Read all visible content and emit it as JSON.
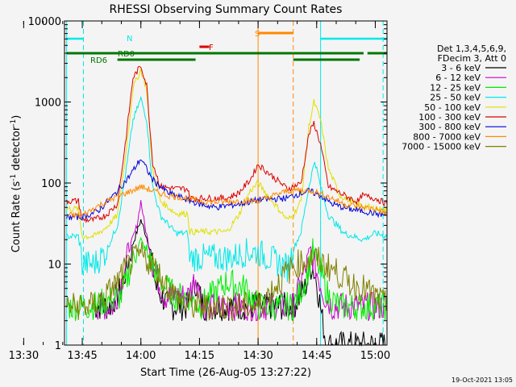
{
  "chart_data": {
    "type": "line",
    "title": "RHESSI Observing Summary Count Rates",
    "xlabel": "Start Time (26-Aug-05 13:27:22)",
    "ylabel": "Count Rate (s⁻¹ detector⁻¹)",
    "ylabel_main": "Count Rate (s",
    "ylabel_sup1": "-1",
    "ylabel_mid": " detector",
    "ylabel_sup2": "-1",
    "ylabel_end": ")",
    "yscale": "log",
    "ylim": [
      1,
      10000
    ],
    "xlim_minutes": [
      13.45,
      96
    ],
    "x_ticks": [
      {
        "m": 3,
        "label": "13:30"
      },
      {
        "m": 18,
        "label": "13:45"
      },
      {
        "m": 33,
        "label": "14:00"
      },
      {
        "m": 48,
        "label": "14:15"
      },
      {
        "m": 63,
        "label": "14:30"
      },
      {
        "m": 78,
        "label": "14:45"
      },
      {
        "m": 93,
        "label": "15:00"
      }
    ],
    "y_ticks": [
      {
        "v": 1,
        "label": "1"
      },
      {
        "v": 10,
        "label": "10"
      },
      {
        "v": 100,
        "label": "100"
      },
      {
        "v": 1000,
        "label": "1000"
      },
      {
        "v": 10000,
        "label": "10000"
      }
    ],
    "legend_header": [
      "Det 1,3,4,5,6,9,",
      "FDecim 3, Att 0"
    ],
    "series": [
      {
        "name": "3 - 6 keV",
        "color": "#000000",
        "points": [
          [
            21,
            3
          ],
          [
            25,
            3
          ],
          [
            28,
            5
          ],
          [
            31,
            18
          ],
          [
            33,
            35
          ],
          [
            35,
            18
          ],
          [
            37,
            5
          ],
          [
            40,
            3
          ],
          [
            45,
            3
          ],
          [
            47,
            6
          ],
          [
            49,
            3
          ],
          [
            60,
            3
          ],
          [
            63,
            3
          ],
          [
            72,
            3
          ],
          [
            75,
            5
          ],
          [
            76.8,
            10
          ],
          [
            78,
            6
          ],
          [
            79.5,
            2
          ],
          [
            80.5,
            1
          ],
          [
            96,
            1
          ]
        ]
      },
      {
        "name": "6 - 12 keV",
        "color": "#cc00cc",
        "points": [
          [
            21,
            3
          ],
          [
            26,
            3
          ],
          [
            28,
            6
          ],
          [
            30,
            15
          ],
          [
            32,
            30
          ],
          [
            33,
            60
          ],
          [
            34,
            30
          ],
          [
            36,
            10
          ],
          [
            39,
            4
          ],
          [
            45,
            4
          ],
          [
            47,
            7
          ],
          [
            49,
            3
          ],
          [
            60,
            3
          ],
          [
            63,
            3
          ],
          [
            72,
            3
          ],
          [
            74,
            6
          ],
          [
            76.5,
            14
          ],
          [
            78,
            8
          ],
          [
            80,
            4
          ],
          [
            82,
            3
          ],
          [
            90,
            3
          ],
          [
            96,
            3
          ]
        ]
      },
      {
        "name": "12 - 25 keV",
        "color": "#00ee00",
        "points": [
          [
            14,
            3
          ],
          [
            20,
            3
          ],
          [
            28,
            4
          ],
          [
            30,
            8
          ],
          [
            32,
            15
          ],
          [
            33,
            20
          ],
          [
            35,
            12
          ],
          [
            38,
            6
          ],
          [
            42,
            4
          ],
          [
            45,
            4
          ],
          [
            48,
            3
          ],
          [
            55,
            6
          ],
          [
            60,
            5
          ],
          [
            63,
            3
          ],
          [
            72,
            3
          ],
          [
            75,
            6
          ],
          [
            77,
            14
          ],
          [
            79,
            8
          ],
          [
            81,
            4
          ],
          [
            84,
            3
          ],
          [
            90,
            3
          ],
          [
            96,
            3
          ]
        ]
      },
      {
        "name": "25 - 50 keV",
        "color": "#00e8e8",
        "points": [
          [
            14,
            22
          ],
          [
            17,
            22
          ],
          [
            18,
            10
          ],
          [
            21,
            10
          ],
          [
            24,
            14
          ],
          [
            27,
            30
          ],
          [
            29,
            120
          ],
          [
            31,
            600
          ],
          [
            33,
            1100
          ],
          [
            34.5,
            600
          ],
          [
            36,
            90
          ],
          [
            38,
            40
          ],
          [
            42,
            24
          ],
          [
            45,
            24
          ],
          [
            45.5,
            12
          ],
          [
            48,
            12
          ],
          [
            56,
            12
          ],
          [
            60,
            14
          ],
          [
            63,
            14
          ],
          [
            70.5,
            9
          ],
          [
            72,
            15
          ],
          [
            74,
            25
          ],
          [
            76,
            90
          ],
          [
            77.5,
            190
          ],
          [
            79,
            90
          ],
          [
            81,
            40
          ],
          [
            85,
            24
          ],
          [
            90,
            20
          ],
          [
            93,
            24
          ],
          [
            96,
            22
          ]
        ]
      },
      {
        "name": "50 - 100 keV",
        "color": "#e0e000",
        "points": [
          [
            14,
            48
          ],
          [
            17,
            48
          ],
          [
            18,
            22
          ],
          [
            21,
            22
          ],
          [
            24,
            28
          ],
          [
            27,
            40
          ],
          [
            29,
            200
          ],
          [
            31,
            1500
          ],
          [
            33,
            2500
          ],
          [
            34.5,
            1400
          ],
          [
            36,
            150
          ],
          [
            38,
            60
          ],
          [
            42,
            42
          ],
          [
            45,
            42
          ],
          [
            45.5,
            25
          ],
          [
            50,
            25
          ],
          [
            55,
            25
          ],
          [
            58,
            40
          ],
          [
            61,
            80
          ],
          [
            63,
            100
          ],
          [
            70.5,
            35
          ],
          [
            72,
            40
          ],
          [
            74,
            60
          ],
          [
            76,
            500
          ],
          [
            77.3,
            1000
          ],
          [
            79,
            600
          ],
          [
            81,
            150
          ],
          [
            84,
            70
          ],
          [
            88,
            55
          ],
          [
            93,
            48
          ],
          [
            96,
            46
          ]
        ]
      },
      {
        "name": "100 - 300 keV",
        "color": "#dd0000",
        "points": [
          [
            14,
            60
          ],
          [
            17,
            60
          ],
          [
            18,
            35
          ],
          [
            21,
            35
          ],
          [
            24,
            40
          ],
          [
            27,
            55
          ],
          [
            29,
            300
          ],
          [
            31,
            2000
          ],
          [
            33,
            2800
          ],
          [
            34.5,
            1600
          ],
          [
            36,
            180
          ],
          [
            38,
            90
          ],
          [
            42,
            85
          ],
          [
            45,
            85
          ],
          [
            45.5,
            65
          ],
          [
            50,
            65
          ],
          [
            55,
            65
          ],
          [
            58,
            75
          ],
          [
            61,
            110
          ],
          [
            63,
            170
          ],
          [
            70.5,
            85
          ],
          [
            72,
            90
          ],
          [
            74,
            100
          ],
          [
            76,
            400
          ],
          [
            77.3,
            550
          ],
          [
            79,
            300
          ],
          [
            81,
            90
          ],
          [
            84,
            75
          ],
          [
            88,
            60
          ],
          [
            89,
            60
          ],
          [
            89.5,
            70
          ],
          [
            93,
            65
          ],
          [
            96,
            55
          ]
        ]
      },
      {
        "name": "300 - 800 keV",
        "color": "#0000dd",
        "points": [
          [
            14,
            38
          ],
          [
            18,
            38
          ],
          [
            22,
            45
          ],
          [
            26,
            70
          ],
          [
            30,
            120
          ],
          [
            33,
            200
          ],
          [
            36,
            110
          ],
          [
            40,
            75
          ],
          [
            45,
            62
          ],
          [
            48,
            55
          ],
          [
            52,
            50
          ],
          [
            58,
            55
          ],
          [
            62,
            60
          ],
          [
            63,
            62
          ],
          [
            70.5,
            65
          ],
          [
            72,
            70
          ],
          [
            76,
            80
          ],
          [
            79,
            70
          ],
          [
            82,
            55
          ],
          [
            86,
            48
          ],
          [
            90,
            45
          ],
          [
            93,
            42
          ],
          [
            96,
            40
          ]
        ]
      },
      {
        "name": "800 - 7000 keV",
        "color": "#ff8800",
        "points": [
          [
            14,
            40
          ],
          [
            18,
            40
          ],
          [
            22,
            52
          ],
          [
            26,
            65
          ],
          [
            30,
            78
          ],
          [
            33,
            90
          ],
          [
            36,
            80
          ],
          [
            40,
            70
          ],
          [
            45,
            65
          ],
          [
            48,
            60
          ],
          [
            52,
            58
          ],
          [
            58,
            60
          ],
          [
            63,
            60
          ],
          [
            70.5,
            80
          ],
          [
            73,
            82
          ],
          [
            77,
            80
          ],
          [
            81,
            68
          ],
          [
            85,
            55
          ],
          [
            90,
            50
          ],
          [
            93,
            48
          ],
          [
            96,
            42
          ]
        ]
      },
      {
        "name": "7000 - 15000 keV",
        "color": "#808000",
        "points": [
          [
            14,
            3
          ],
          [
            20,
            3
          ],
          [
            24,
            4
          ],
          [
            27,
            6
          ],
          [
            30,
            10
          ],
          [
            33,
            13
          ],
          [
            36,
            10
          ],
          [
            39,
            6
          ],
          [
            42,
            4
          ],
          [
            45,
            3
          ],
          [
            50,
            3
          ],
          [
            56,
            3
          ],
          [
            63,
            3
          ],
          [
            70.5,
            8
          ],
          [
            73,
            10
          ],
          [
            77,
            12
          ],
          [
            80,
            10
          ],
          [
            83,
            8
          ],
          [
            86,
            6
          ],
          [
            90,
            5
          ],
          [
            93,
            4
          ],
          [
            96,
            3
          ]
        ]
      }
    ],
    "annotations": {
      "N_label": "N",
      "RD0_label": "RD0",
      "RD6_label": "RD6",
      "F_label": "F",
      "S_label": "S"
    },
    "flag_bars": {
      "N": {
        "color": "#00e8e8",
        "segments": [
          [
            14,
            18.3
          ],
          [
            79,
            96
          ]
        ]
      },
      "RD0": {
        "color": "#007700",
        "segments": [
          [
            14,
            54
          ],
          [
            54,
            72
          ],
          [
            72,
            90
          ],
          [
            91,
            96
          ]
        ]
      },
      "RD6": {
        "color": "#007700",
        "segments": [
          [
            27,
            47
          ],
          [
            72,
            89
          ]
        ]
      },
      "F": {
        "color": "#dd0000",
        "segments": [
          [
            48,
            50.5
          ]
        ]
      },
      "S": {
        "color": "#ff8800",
        "segments": [
          [
            63,
            72
          ]
        ]
      }
    },
    "vlines": [
      {
        "m": 14,
        "color": "#00e8e8",
        "style": "solid"
      },
      {
        "m": 18.3,
        "color": "#00e8e8",
        "style": "dashed"
      },
      {
        "m": 63,
        "color": "#ff8800",
        "style": "solid"
      },
      {
        "m": 72,
        "color": "#ff8800",
        "style": "dashed"
      },
      {
        "m": 79,
        "color": "#00e8e8",
        "style": "solid"
      },
      {
        "m": 95,
        "color": "#00e8e8",
        "style": "dashed"
      }
    ]
  },
  "footer_timestamp": "19-Oct-2021 13:05"
}
